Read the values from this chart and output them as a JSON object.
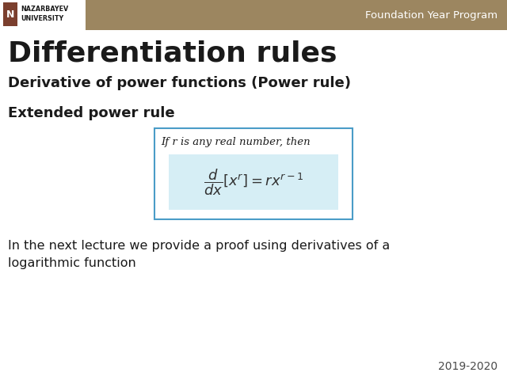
{
  "title": "Differentiation rules",
  "subtitle": "Derivative of power functions (Power rule)",
  "section_header": "Extended power rule",
  "box_text_italic": "If r is any real number, then",
  "bottom_text_line1": "In the next lecture we provide a proof using derivatives of a",
  "bottom_text_line2": "logarithmic function",
  "header_bg_color": "#9C8660",
  "header_text": "Foundation Year Program",
  "header_text_color": "#ffffff",
  "title_color": "#1a1a1a",
  "subtitle_color": "#1a1a1a",
  "section_color": "#1a1a1a",
  "body_text_color": "#1a1a1a",
  "box_border_color": "#4a9cc7",
  "box_fill_color": "#ffffff",
  "formula_bg_color": "#d6eef5",
  "year_text": "2019-2020",
  "year_color": "#4a4a4a",
  "logo_bg_color": "#ffffff",
  "logo_icon_color": "#7B3F2E",
  "logo_icon_border": "#5C3D1E"
}
